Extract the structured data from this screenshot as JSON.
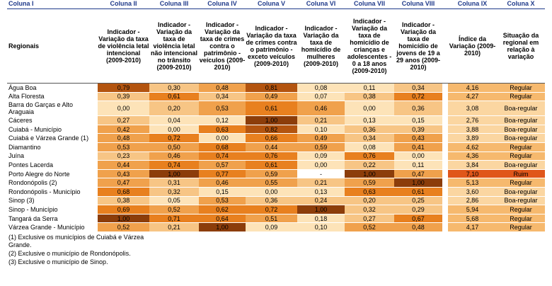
{
  "columns": {
    "col1": "Coluna I",
    "col2": "Coluna II",
    "col3": "Coluna III",
    "col4": "Coluna IV",
    "col5": "Coluna V",
    "col6": "Coluna VI",
    "col7": "Coluna VII",
    "col8": "Coluna VIII",
    "col9": "Coluna IX",
    "col10": "Coluna X"
  },
  "headers": {
    "h1": "Regionais",
    "h2": "Indicador - Variação da taxa de violência letal intencional (2009-2010)",
    "h3": "Indicador - Variação da taxa de violência letal não intencional no trânsito (2009-2010)",
    "h4": "Indicador - Variação da taxa de crimes contra o patrimônio - veículos (2009-2010)",
    "h5": "Indicador - Variação da taxa de crimes contra o patrimônio - exceto veículos (2009-2010)",
    "h6": "Indicador - Variação da taxa de homicídio de mulheres (2009-2010)",
    "h7": "Indicador - Variação da taxa de homicídio de crianças e adolescentes - 0 a 18 anos (2009-2010)",
    "h8": "Indicador - Variação da taxa de homicídio de jovens de 19 a 29 anos (2009-2010)",
    "h9": "Índice da Variação (2009-2010)",
    "h10": "Situação da regional em relação à variação"
  },
  "rows": [
    {
      "name": "Água Boa",
      "v": [
        "0,79",
        "0,30",
        "0,48",
        "0,81",
        "0,08",
        "0,11",
        "0,34",
        "4,16",
        "Regular"
      ]
    },
    {
      "name": "Alta Floresta",
      "v": [
        "0,39",
        "0,61",
        "0,34",
        "0,49",
        "0,07",
        "0,38",
        "0,72",
        "4,27",
        "Regular"
      ]
    },
    {
      "name": "Barra do Garças e Alto Araguaia",
      "v": [
        "0,00",
        "0,20",
        "0,53",
        "0,61",
        "0,46",
        "0,00",
        "0,36",
        "3,08",
        "Boa-regular"
      ]
    },
    {
      "name": "Cáceres",
      "v": [
        "0,27",
        "0,04",
        "0,12",
        "1,00",
        "0,21",
        "0,13",
        "0,15",
        "2,76",
        "Boa-regular"
      ]
    },
    {
      "name": "Cuiabá - Município",
      "v": [
        "0,42",
        "0,00",
        "0,63",
        "0,82",
        "0,10",
        "0,36",
        "0,39",
        "3,88",
        "Boa-regular"
      ]
    },
    {
      "name": "Cuiabá e Várzea Grande (1)",
      "v": [
        "0,48",
        "0,72",
        "0,00",
        "0,66",
        "0,49",
        "0,34",
        "0,43",
        "3,89",
        "Boa-regular"
      ]
    },
    {
      "name": "Diamantino",
      "v": [
        "0,53",
        "0,50",
        "0,68",
        "0,44",
        "0,59",
        "0,08",
        "0,41",
        "4,62",
        "Regular"
      ]
    },
    {
      "name": "Juína",
      "v": [
        "0,23",
        "0,46",
        "0,74",
        "0,76",
        "0,09",
        "0,76",
        "0,00",
        "4,36",
        "Regular"
      ]
    },
    {
      "name": "Pontes Lacerda",
      "v": [
        "0,44",
        "0,74",
        "0,57",
        "0,61",
        "0,00",
        "0,22",
        "0,11",
        "3,84",
        "Boa-regular"
      ]
    },
    {
      "name": "Porto Alegre do Norte",
      "v": [
        "0,43",
        "1,00",
        "0,77",
        "0,59",
        "-",
        "1,00",
        "0,47",
        "7,10",
        "Ruim"
      ]
    },
    {
      "name": "Rondonópolis (2)",
      "v": [
        "0,47",
        "0,31",
        "0,46",
        "0,55",
        "0,21",
        "0,59",
        "1,00",
        "5,13",
        "Regular"
      ]
    },
    {
      "name": "Rondonópolis - Município",
      "v": [
        "0,68",
        "0,32",
        "0,15",
        "0,00",
        "0,13",
        "0,63",
        "0,61",
        "3,60",
        "Boa-regular"
      ]
    },
    {
      "name": "Sinop (3)",
      "v": [
        "0,38",
        "0,05",
        "0,53",
        "0,36",
        "0,24",
        "0,20",
        "0,25",
        "2,86",
        "Boa-regular"
      ]
    },
    {
      "name": "Sinop - Município",
      "v": [
        "0,69",
        "0,52",
        "0,62",
        "0,72",
        "1,00",
        "0,32",
        "0,29",
        "5,94",
        "Regular"
      ]
    },
    {
      "name": "Tangará da Serra",
      "v": [
        "1,00",
        "0,71",
        "0,64",
        "0,51",
        "0,18",
        "0,27",
        "0,67",
        "5,68",
        "Regular"
      ]
    },
    {
      "name": "Várzea Grande - Município",
      "v": [
        "0,52",
        "0,21",
        "1,00",
        "0,09",
        "0,10",
        "0,52",
        "0,48",
        "4,17",
        "Regular"
      ]
    }
  ],
  "notes": {
    "n1": "(1) Exclusive os municípios de Cuiabá e Várzea Grande.",
    "n2": "(2) Exclusive o município de Rondonópolis.",
    "n3": "(3) Exclusive o município de Sinop."
  },
  "colors": {
    "c0": "#fde3b8",
    "c1": "#f7c585",
    "c2": "#f0a14c",
    "c3": "#e8801f",
    "c4": "#b3540f",
    "c5": "#8c3d0a",
    "idx_regular": "#f6b96e",
    "idx_boa": "#fbd6a1",
    "idx_ruim": "#e0561a"
  }
}
